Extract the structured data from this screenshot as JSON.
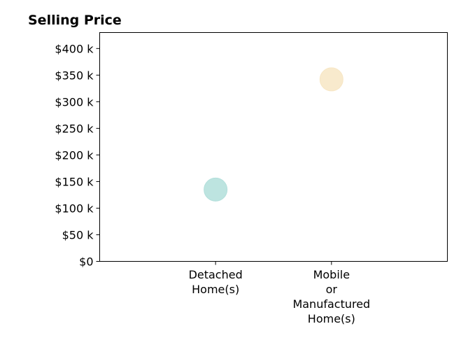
{
  "chart_data": {
    "type": "scatter",
    "title": "Selling Price",
    "xlabel": "",
    "ylabel": "",
    "categories": [
      "Detached\nHome(s)",
      "Mobile\nor\nManufactured\nHome(s)"
    ],
    "y_ticks": [
      "$0",
      "$50 k",
      "$100 k",
      "$150 k",
      "$200 k",
      "$250 k",
      "$300 k",
      "$350 k",
      "$400 k"
    ],
    "y_tick_values": [
      0,
      50000,
      100000,
      150000,
      200000,
      250000,
      300000,
      350000,
      400000
    ],
    "ylim": [
      0,
      430000
    ],
    "grid": false,
    "points": [
      {
        "category": "Detached\nHome(s)",
        "value": 135000,
        "color": "#b2dfdb"
      },
      {
        "category": "Mobile\nor\nManufactured\nHome(s)",
        "value": 342000,
        "color": "#f7e6c4"
      }
    ]
  }
}
